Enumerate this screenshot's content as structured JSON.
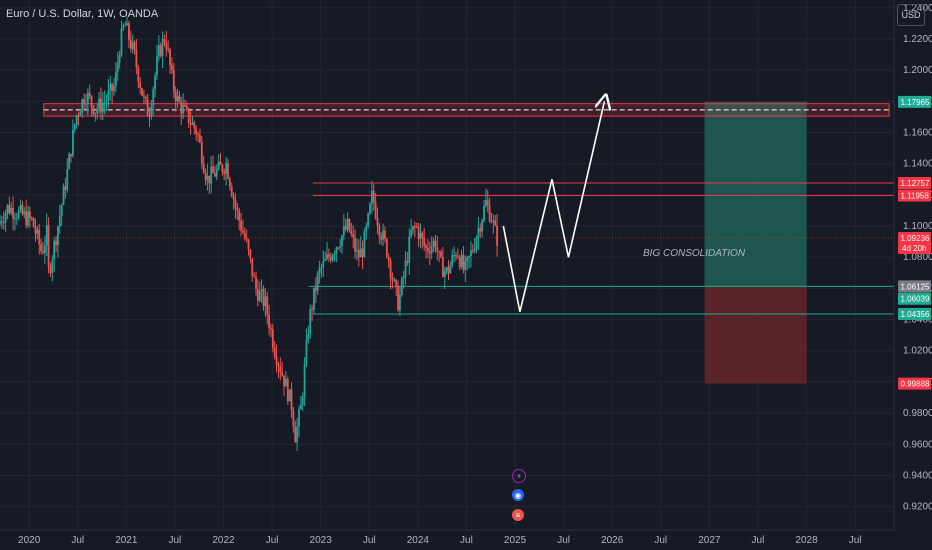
{
  "header": {
    "title": "Euro / U.S. Dollar, 1W, OANDA"
  },
  "currency_button": "USD",
  "colors": {
    "up": "#26a69a",
    "down": "#ef5350",
    "grid": "#232632",
    "resistance": "#f23645",
    "support": "#22ab94",
    "projection": "#ffffff",
    "target_zone": "#1f6b5c",
    "stop_zone": "#6a2529"
  },
  "events": [
    {
      "icon": "lightning-icon",
      "glyph": "⚡"
    },
    {
      "icon": "globe-icon",
      "glyph": "◉"
    },
    {
      "icon": "us-flag-icon",
      "glyph": "≡"
    }
  ],
  "chart_data": {
    "type": "candlestick",
    "symbol": "EURUSD",
    "annotation": "BIG CONSOLIDATION",
    "x_ticks": [
      "2020",
      "Jul",
      "2021",
      "Jul",
      "2022",
      "Jul",
      "2023",
      "Jul",
      "2024",
      "Jul",
      "2025",
      "Jul",
      "2026",
      "Jul",
      "2027",
      "Jul",
      "2028",
      "Jul"
    ],
    "y_ticks": [
      "1.24000",
      "1.22000",
      "1.20000",
      "1.18000",
      "1.16000",
      "1.14000",
      "1.12000",
      "1.10000",
      "1.08000",
      "1.06000",
      "1.04000",
      "1.02000",
      "1.00000",
      "0.98000",
      "0.96000",
      "0.94000",
      "0.92000"
    ],
    "ylim": [
      0.905,
      1.245
    ],
    "x_range": [
      2019.7,
      2028.9
    ],
    "price_path": [
      [
        2019.7,
        1.101
      ],
      [
        2019.8,
        1.112
      ],
      [
        2019.95,
        1.107
      ],
      [
        2020.05,
        1.103
      ],
      [
        2020.15,
        1.083
      ],
      [
        2020.2,
        1.095
      ],
      [
        2020.22,
        1.07
      ],
      [
        2020.3,
        1.095
      ],
      [
        2020.4,
        1.13
      ],
      [
        2020.5,
        1.17
      ],
      [
        2020.6,
        1.185
      ],
      [
        2020.7,
        1.175
      ],
      [
        2020.8,
        1.18
      ],
      [
        2020.9,
        1.19
      ],
      [
        2020.95,
        1.215
      ],
      [
        2021.0,
        1.23
      ],
      [
        2021.1,
        1.21
      ],
      [
        2021.2,
        1.18
      ],
      [
        2021.25,
        1.172
      ],
      [
        2021.35,
        1.21
      ],
      [
        2021.42,
        1.222
      ],
      [
        2021.5,
        1.19
      ],
      [
        2021.55,
        1.18
      ],
      [
        2021.65,
        1.17
      ],
      [
        2021.75,
        1.16
      ],
      [
        2021.85,
        1.13
      ],
      [
        2021.95,
        1.135
      ],
      [
        2022.05,
        1.14
      ],
      [
        2022.15,
        1.11
      ],
      [
        2022.25,
        1.09
      ],
      [
        2022.35,
        1.06
      ],
      [
        2022.45,
        1.05
      ],
      [
        2022.55,
        1.02
      ],
      [
        2022.65,
        1.0
      ],
      [
        2022.72,
        0.985
      ],
      [
        2022.76,
        0.965
      ],
      [
        2022.82,
        0.985
      ],
      [
        2022.9,
        1.04
      ],
      [
        2023.0,
        1.07
      ],
      [
        2023.1,
        1.08
      ],
      [
        2023.2,
        1.09
      ],
      [
        2023.3,
        1.1
      ],
      [
        2023.4,
        1.08
      ],
      [
        2023.45,
        1.085
      ],
      [
        2023.5,
        1.1
      ],
      [
        2023.55,
        1.12
      ],
      [
        2023.62,
        1.1
      ],
      [
        2023.7,
        1.085
      ],
      [
        2023.78,
        1.06
      ],
      [
        2023.82,
        1.05
      ],
      [
        2023.88,
        1.07
      ],
      [
        2023.95,
        1.095
      ],
      [
        2024.0,
        1.1
      ],
      [
        2024.1,
        1.085
      ],
      [
        2024.2,
        1.09
      ],
      [
        2024.25,
        1.075
      ],
      [
        2024.32,
        1.07
      ],
      [
        2024.42,
        1.085
      ],
      [
        2024.5,
        1.07
      ],
      [
        2024.58,
        1.085
      ],
      [
        2024.65,
        1.1
      ],
      [
        2024.72,
        1.115
      ],
      [
        2024.78,
        1.105
      ],
      [
        2024.83,
        1.092
      ]
    ],
    "levels": {
      "resistance_zone": {
        "top": 1.1785,
        "bottom": 1.1705,
        "midline": 1.17965,
        "from_x": 2020.15
      },
      "resistance_lines": [
        {
          "price": 1.12757,
          "from_x": 2022.92
        },
        {
          "price": 1.11958,
          "from_x": 2022.92
        }
      ],
      "support_lines": [
        {
          "price": 1.06125,
          "from_x": 2022.88
        },
        {
          "price": 1.04356,
          "from_x": 2022.92
        }
      ],
      "current_line": {
        "price": 1.09236,
        "from_x": 2019.7
      },
      "target_zone": {
        "x0": 2026.95,
        "x1": 2028.0,
        "top": 1.17965,
        "bottom": 1.06125
      },
      "stop_zone": {
        "x0": 2026.95,
        "x1": 2028.0,
        "top": 1.06125,
        "bottom": 0.99888
      }
    },
    "projection_path": [
      [
        2024.88,
        1.1
      ],
      [
        2025.05,
        1.045
      ],
      [
        2025.38,
        1.13
      ],
      [
        2025.55,
        1.08
      ],
      [
        2025.92,
        1.18
      ]
    ],
    "price_labels": [
      {
        "value": "1.17965",
        "kind": "target"
      },
      {
        "value": "1.12757",
        "kind": "resistance"
      },
      {
        "value": "1.11958",
        "kind": "resistance"
      },
      {
        "value": "1.09236",
        "kind": "current",
        "sub": "4d 20h"
      },
      {
        "value": "1.06125",
        "kind": "entry"
      },
      {
        "value": "1.06039",
        "kind": "support"
      },
      {
        "value": "1.04356",
        "kind": "support"
      },
      {
        "value": "0.99888",
        "kind": "stop"
      }
    ]
  }
}
